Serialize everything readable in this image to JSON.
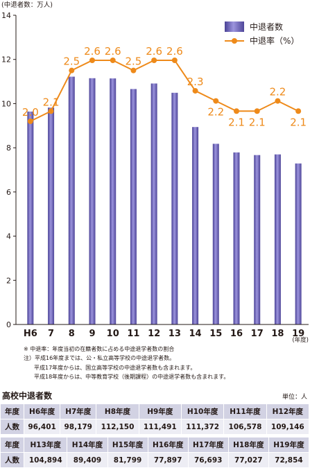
{
  "chart_data": {
    "type": "bar+line",
    "y_unit_label": "(中退者数：万人)",
    "x_unit_label": "(年度)",
    "categories": [
      "H6",
      "7",
      "8",
      "9",
      "10",
      "11",
      "12",
      "13",
      "14",
      "15",
      "16",
      "17",
      "18",
      "19"
    ],
    "ylim": [
      0,
      14
    ],
    "yticks": [
      0,
      2,
      4,
      6,
      8,
      10,
      12,
      14
    ],
    "series": [
      {
        "name": "中退者数",
        "type": "bar",
        "color": "#6b62b8",
        "values": [
          9.64,
          9.82,
          11.22,
          11.15,
          11.14,
          10.66,
          10.91,
          10.49,
          8.94,
          8.18,
          7.79,
          7.67,
          7.7,
          7.29
        ]
      },
      {
        "name": "中退率（%）",
        "type": "line",
        "color": "#ee8a1a",
        "values": [
          2.0,
          2.1,
          2.5,
          2.6,
          2.6,
          2.5,
          2.6,
          2.6,
          2.3,
          2.2,
          2.1,
          2.1,
          2.2,
          2.1
        ],
        "labels": [
          "2.0",
          "2.1",
          "2.5",
          "2.6",
          "2.6",
          "2.5",
          "2.6",
          "2.6",
          "2.3",
          "2.2",
          "2.1",
          "2.1",
          "2.2",
          "2.1"
        ]
      }
    ],
    "legend_position": "top-right",
    "grid": false
  },
  "notes": [
    "※ 中退率：年度当初の在籍者数に占める中途退学者数の割合",
    "注）平成16年度までは、公・私立高等学校の中途退学者数。",
    "平成17年度からは、国立高等学校の中途退学者数も含まれます。",
    "平成18年度からは、中等教育学校（後期課程）の中途退学者数も含まれます。"
  ],
  "table": {
    "title": "高校中退者数",
    "unit": "単位：人",
    "row1": {
      "header_label": "年度",
      "headers": [
        "H6年度",
        "H7年度",
        "H8年度",
        "H9年度",
        "H10年度",
        "H11年度",
        "H12年度"
      ],
      "value_label": "人数",
      "values": [
        "96,401",
        "98,179",
        "112,150",
        "111,491",
        "111,372",
        "106,578",
        "109,146"
      ]
    },
    "row2": {
      "header_label": "年度",
      "headers": [
        "H13年度",
        "H14年度",
        "H15年度",
        "H16年度",
        "H17年度",
        "H18年度",
        "H19年度"
      ],
      "value_label": "人数",
      "values": [
        "104,894",
        "89,409",
        "81,799",
        "77,897",
        "76,693",
        "77,027",
        "72,854"
      ]
    }
  }
}
